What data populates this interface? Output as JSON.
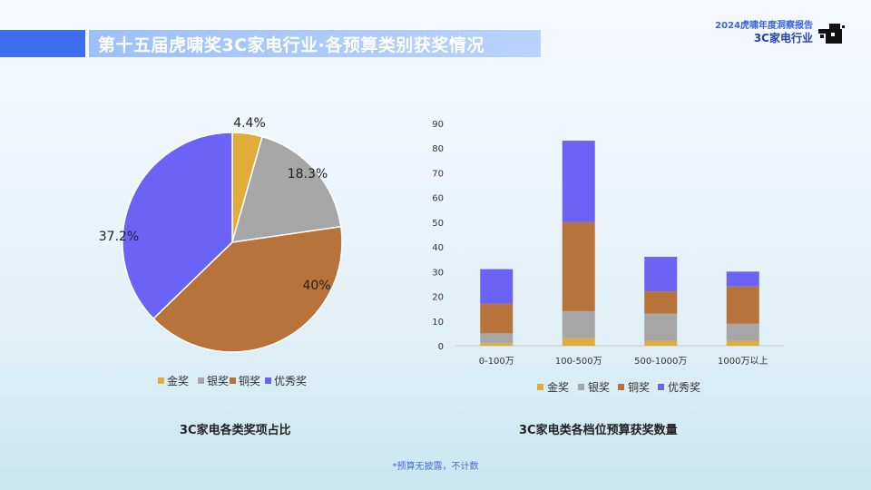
{
  "header": {
    "title": "第十五届虎啸奖3C家电行业·各预算类别获奖情况",
    "brand_line1": "2024虎啸年度洞察报告",
    "brand_line2": "3C家电行业"
  },
  "colors": {
    "gold": "#e2ac3a",
    "silver": "#a6a6a6",
    "bronze": "#b8733a",
    "excellent": "#6a63f6",
    "accent": "#3b6ff0"
  },
  "captions": {
    "pie": "3C家电各类奖项占比",
    "bar": "3C家电类各档位预算获奖数量"
  },
  "footnote": "*预算无披露，不计数",
  "chart_data": [
    {
      "type": "pie",
      "title": "3C家电各类奖项占比",
      "slices": [
        {
          "name": "金奖",
          "value": 4.4,
          "label": "4.4%",
          "color": "#e2ac3a"
        },
        {
          "name": "银奖",
          "value": 18.3,
          "label": "18.3%",
          "color": "#a6a6a6"
        },
        {
          "name": "铜奖",
          "value": 40,
          "label": "40%",
          "color": "#b8733a"
        },
        {
          "name": "优秀奖",
          "value": 37.2,
          "label": "37.2%",
          "color": "#6a63f6"
        }
      ],
      "start_angle_deg": 0,
      "direction": "clockwise",
      "legend": {
        "placement": "bottom",
        "entries": [
          "金奖",
          "银奖",
          "铜奖",
          "优秀奖"
        ]
      }
    },
    {
      "type": "bar",
      "stacked": true,
      "title": "3C家电类各档位预算获奖数量",
      "categories": [
        "0-100万",
        "100-500万",
        "500-1000万",
        "1000万以上"
      ],
      "series": [
        {
          "name": "金奖",
          "values": [
            1,
            3,
            2,
            2
          ],
          "color": "#e2ac3a"
        },
        {
          "name": "银奖",
          "values": [
            4,
            11,
            11,
            7
          ],
          "color": "#a6a6a6"
        },
        {
          "name": "铜奖",
          "values": [
            12,
            36,
            9,
            15
          ],
          "color": "#b8733a"
        },
        {
          "name": "优秀奖",
          "values": [
            14,
            33,
            14,
            6
          ],
          "color": "#6a63f6"
        }
      ],
      "ylim": [
        0,
        90
      ],
      "yticks": [
        0,
        10,
        20,
        30,
        40,
        50,
        60,
        70,
        80,
        90
      ],
      "grid": false,
      "legend": {
        "placement": "bottom",
        "entries": [
          "金奖",
          "银奖",
          "铜奖",
          "优秀奖"
        ]
      }
    }
  ]
}
